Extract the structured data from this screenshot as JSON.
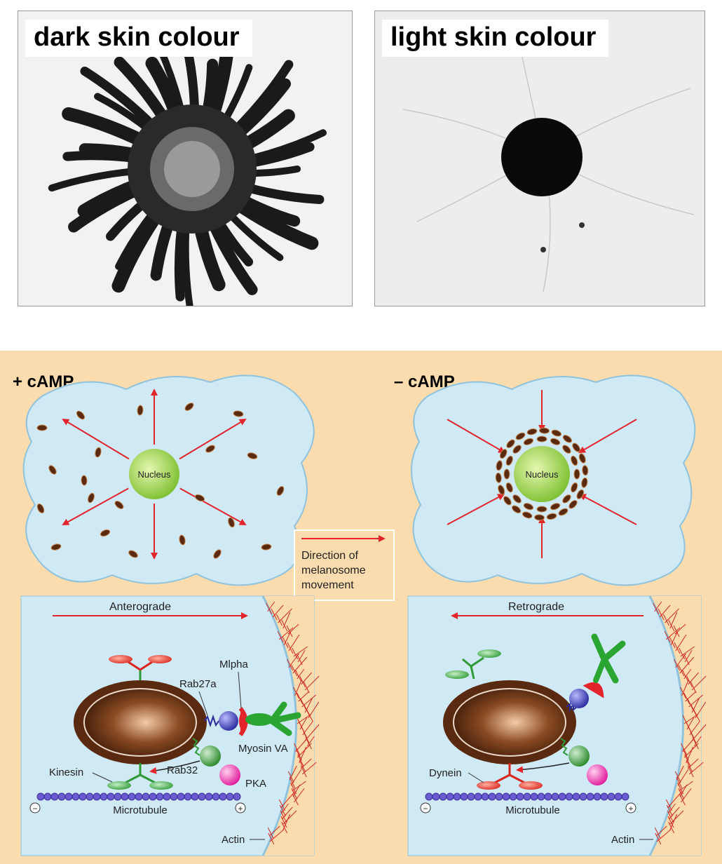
{
  "photos": {
    "dark_label": "dark skin colour",
    "light_label": "light skin colour"
  },
  "diagram": {
    "plus_camp": "+ cAMP",
    "minus_camp": "– cAMP",
    "nucleus": "Nucleus",
    "legend": [
      "Direction of",
      "melanosome",
      "movement"
    ],
    "anterograde": "Anterograde",
    "retrograde": "Retrograde",
    "labels": {
      "mlpha": "Mlpha",
      "rab27a": "Rab27a",
      "myosin": "Myosin VA",
      "kinesin": "Kinesin",
      "rab32": "Rab32",
      "pka": "PKA",
      "microtubule": "Microtubule",
      "actin": "Actin",
      "dynein": "Dynein"
    },
    "minus_end": "−",
    "plus_end": "+"
  },
  "colors": {
    "panel_bg": "#fbdcae",
    "cell": "#cfe9f5",
    "arrow": "#e3242b",
    "nucleus": "#8cc63f"
  }
}
